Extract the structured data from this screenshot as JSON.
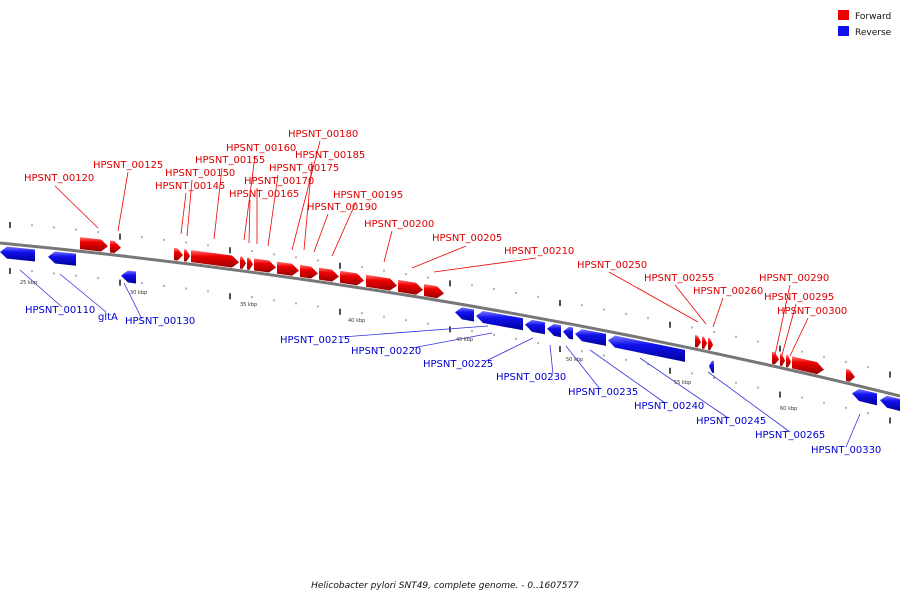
{
  "legend": {
    "forward_label": "Forward",
    "reverse_label": "Reverse",
    "forward_color": "#ee0000",
    "reverse_color": "#1111ee"
  },
  "caption": "Helicobacter pylori SNT49, complete genome. - 0..1607577",
  "tick_labels": [
    "25 kbp",
    "30 kbp",
    "35 kbp",
    "40 kbp",
    "45 kbp",
    "50 kbp",
    "55 kbp",
    "60 kbp"
  ],
  "forward_genes": [
    "HPSNT_00120",
    "HPSNT_00125",
    "HPSNT_00145",
    "HPSNT_00150",
    "HPSNT_00155",
    "HPSNT_00160",
    "HPSNT_00165",
    "HPSNT_00170",
    "HPSNT_00175",
    "HPSNT_00180",
    "HPSNT_00185",
    "HPSNT_00190",
    "HPSNT_00195",
    "HPSNT_00200",
    "HPSNT_00205",
    "HPSNT_00210",
    "HPSNT_00250",
    "HPSNT_00255",
    "HPSNT_00260",
    "HPSNT_00290",
    "HPSNT_00295",
    "HPSNT_00300"
  ],
  "reverse_genes": [
    "HPSNT_00110",
    "gltA",
    "HPSNT_00130",
    "HPSNT_00215",
    "HPSNT_00220",
    "HPSNT_00225",
    "HPSNT_00230",
    "HPSNT_00235",
    "HPSNT_00240",
    "HPSNT_00245",
    "HPSNT_00265",
    "HPSNT_00330"
  ]
}
